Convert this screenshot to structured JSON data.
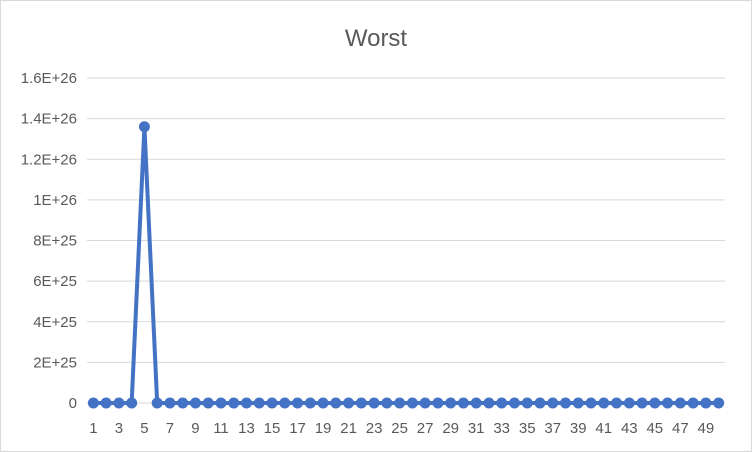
{
  "chart_data": {
    "type": "line",
    "title": "Worst",
    "xlabel": "",
    "ylabel": "",
    "x": [
      1,
      2,
      3,
      4,
      5,
      6,
      7,
      8,
      9,
      10,
      11,
      12,
      13,
      14,
      15,
      16,
      17,
      18,
      19,
      20,
      21,
      22,
      23,
      24,
      25,
      26,
      27,
      28,
      29,
      30,
      31,
      32,
      33,
      34,
      35,
      36,
      37,
      38,
      39,
      40,
      41,
      42,
      43,
      44,
      45,
      46,
      47,
      48,
      49,
      50
    ],
    "x_tick_labels": [
      "1",
      "3",
      "5",
      "7",
      "9",
      "11",
      "13",
      "15",
      "17",
      "19",
      "21",
      "23",
      "25",
      "27",
      "29",
      "31",
      "33",
      "35",
      "37",
      "39",
      "41",
      "43",
      "45",
      "47",
      "49"
    ],
    "y_tick_labels": [
      "0",
      "2E+25",
      "4E+25",
      "6E+25",
      "8E+25",
      "1E+26",
      "1.2E+26",
      "1.4E+26",
      "1.6E+26"
    ],
    "ylim": [
      0,
      1.6e+26
    ],
    "grid": true,
    "legend": "none",
    "series": [
      {
        "color": "#4472c4",
        "values": [
          0,
          0,
          0,
          0,
          1.36e+26,
          0,
          0,
          0,
          0,
          0,
          0,
          0,
          0,
          0,
          0,
          0,
          0,
          0,
          0,
          0,
          0,
          0,
          0,
          0,
          0,
          0,
          0,
          0,
          0,
          0,
          0,
          0,
          0,
          0,
          0,
          0,
          0,
          0,
          0,
          0,
          0,
          0,
          0,
          0,
          0,
          0,
          0,
          0,
          0,
          0
        ]
      }
    ]
  }
}
